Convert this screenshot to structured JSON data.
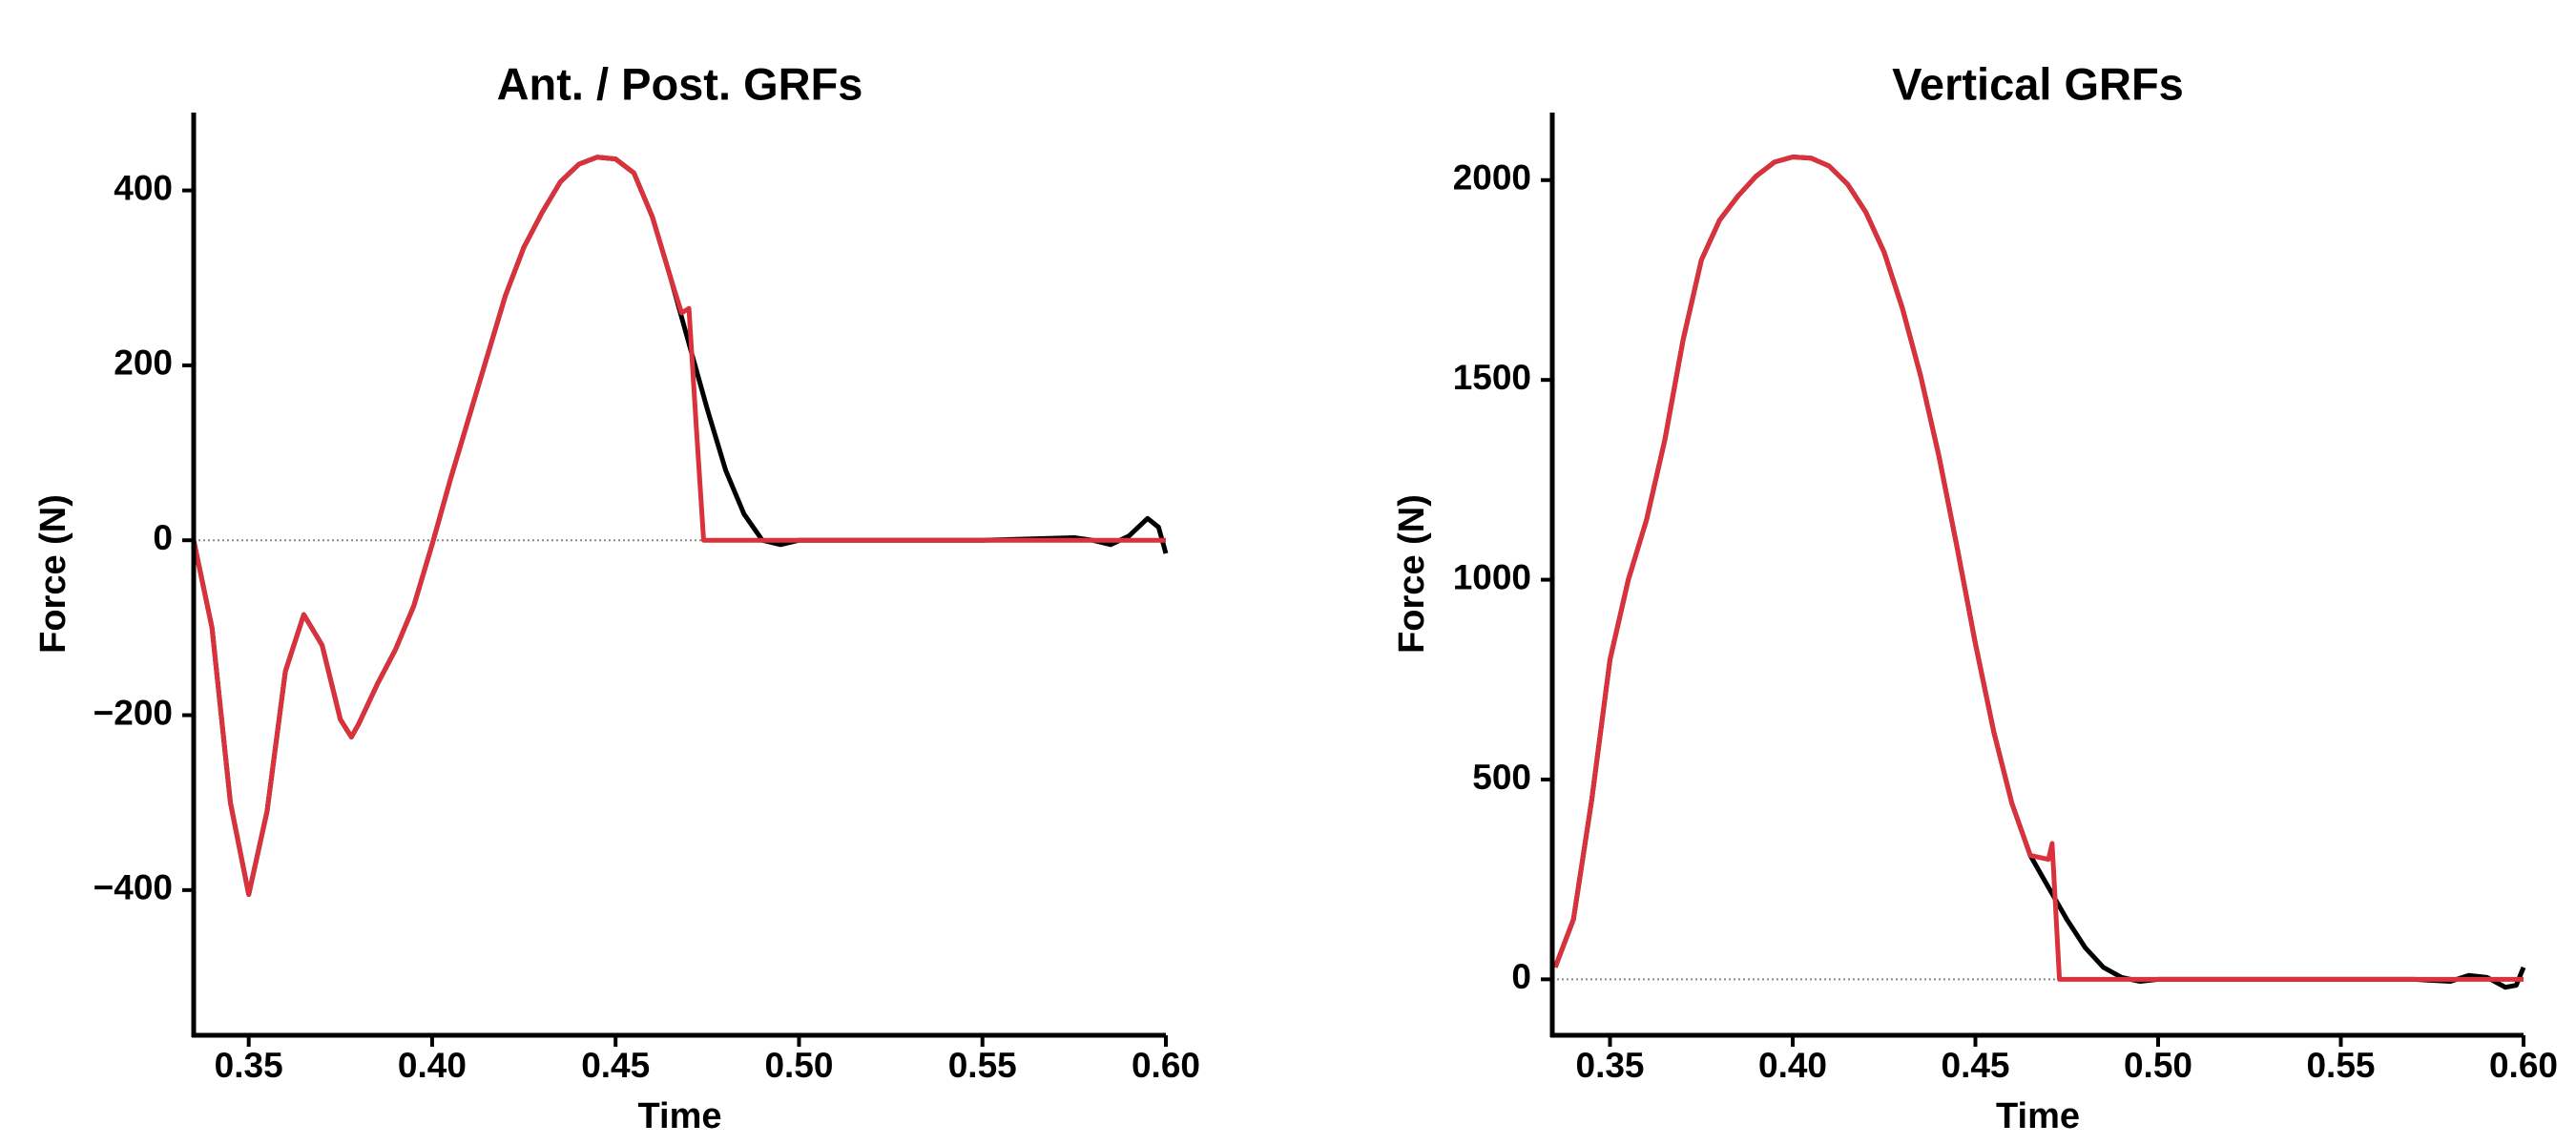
{
  "chart_data": [
    {
      "type": "line",
      "title": "Ant. / Post. GRFs",
      "x_label": "Time",
      "y_label": "Force (N)",
      "xlim": [
        0.335,
        0.6
      ],
      "ylim": [
        -566,
        489
      ],
      "xticks": [
        0.35,
        {
          "value": 0.4,
          "label": "0.40"
        },
        0.45,
        {
          "value": 0.5,
          "label": "0.50"
        },
        0.55,
        {
          "value": 0.6,
          "label": "0.60"
        }
      ],
      "yticks": [
        {
          "value": -400,
          "label": "−400"
        },
        {
          "value": -200,
          "label": "−200"
        },
        0,
        200,
        400
      ],
      "reference_line": 0,
      "series": [
        {
          "color": "#000000",
          "x": [
            0.335,
            0.34,
            0.345,
            0.35,
            0.355,
            0.36,
            0.365,
            0.37,
            0.375,
            0.378,
            0.38,
            0.385,
            0.39,
            0.395,
            0.4,
            0.405,
            0.41,
            0.415,
            0.42,
            0.425,
            0.43,
            0.435,
            0.44,
            0.445,
            0.45,
            0.455,
            0.46,
            0.465,
            0.47,
            0.475,
            0.48,
            0.485,
            0.49,
            0.495,
            0.5,
            0.55,
            0.575,
            0.58,
            0.585,
            0.59,
            0.595,
            0.598,
            0.6
          ],
          "values": [
            0,
            -100,
            -300,
            -405,
            -310,
            -150,
            -85,
            -120,
            -205,
            -225,
            -210,
            -165,
            -125,
            -75,
            -5,
            70,
            140,
            210,
            280,
            335,
            375,
            410,
            430,
            438,
            436,
            420,
            370,
            300,
            225,
            150,
            80,
            30,
            0,
            -5,
            0,
            0,
            3,
            0,
            -5,
            5,
            25,
            15,
            -15
          ]
        },
        {
          "color": "#d9323c",
          "x": [
            0.335,
            0.34,
            0.345,
            0.35,
            0.355,
            0.36,
            0.365,
            0.37,
            0.375,
            0.378,
            0.38,
            0.385,
            0.39,
            0.395,
            0.4,
            0.405,
            0.41,
            0.415,
            0.42,
            0.425,
            0.43,
            0.435,
            0.44,
            0.445,
            0.45,
            0.455,
            0.46,
            0.465,
            0.468,
            0.47,
            0.472,
            0.474,
            0.6
          ],
          "values": [
            0,
            -100,
            -300,
            -405,
            -310,
            -150,
            -85,
            -120,
            -205,
            -225,
            -210,
            -165,
            -125,
            -75,
            -5,
            70,
            140,
            210,
            280,
            335,
            375,
            410,
            430,
            438,
            436,
            420,
            370,
            300,
            260,
            265,
            130,
            0,
            0
          ]
        }
      ]
    },
    {
      "type": "line",
      "title": "Vertical GRFs",
      "x_label": "Time",
      "y_label": "Force (N)",
      "xlim": [
        0.3342,
        0.6
      ],
      "ylim": [
        -140,
        2169
      ],
      "xticks": [
        0.35,
        {
          "value": 0.4,
          "label": "0.40"
        },
        0.45,
        {
          "value": 0.5,
          "label": "0.50"
        },
        0.55,
        {
          "value": 0.6,
          "label": "0.60"
        }
      ],
      "yticks": [
        0,
        500,
        1000,
        1500,
        2000
      ],
      "reference_line": 0,
      "series": [
        {
          "color": "#000000",
          "x": [
            0.335,
            0.34,
            0.345,
            0.35,
            0.355,
            0.36,
            0.365,
            0.37,
            0.375,
            0.38,
            0.385,
            0.39,
            0.395,
            0.4,
            0.405,
            0.41,
            0.415,
            0.42,
            0.425,
            0.43,
            0.435,
            0.44,
            0.445,
            0.45,
            0.455,
            0.46,
            0.465,
            0.47,
            0.475,
            0.48,
            0.485,
            0.49,
            0.495,
            0.5,
            0.57,
            0.58,
            0.585,
            0.59,
            0.595,
            0.598,
            0.6
          ],
          "values": [
            30,
            150,
            450,
            800,
            1000,
            1150,
            1350,
            1600,
            1800,
            1900,
            1960,
            2010,
            2045,
            2058,
            2055,
            2035,
            1990,
            1920,
            1820,
            1680,
            1510,
            1310,
            1080,
            840,
            620,
            440,
            310,
            230,
            150,
            80,
            30,
            5,
            -5,
            0,
            0,
            -5,
            10,
            5,
            -20,
            -15,
            30
          ]
        },
        {
          "color": "#d9323c",
          "x": [
            0.335,
            0.34,
            0.345,
            0.35,
            0.355,
            0.36,
            0.365,
            0.37,
            0.375,
            0.38,
            0.385,
            0.39,
            0.395,
            0.4,
            0.405,
            0.41,
            0.415,
            0.42,
            0.425,
            0.43,
            0.435,
            0.44,
            0.445,
            0.45,
            0.455,
            0.46,
            0.465,
            0.47,
            0.471,
            0.473,
            0.6
          ],
          "values": [
            30,
            150,
            450,
            800,
            1000,
            1150,
            1350,
            1600,
            1800,
            1900,
            1960,
            2010,
            2045,
            2058,
            2055,
            2035,
            1990,
            1920,
            1820,
            1680,
            1510,
            1310,
            1080,
            840,
            620,
            440,
            310,
            300,
            340,
            0,
            0
          ]
        }
      ]
    }
  ]
}
